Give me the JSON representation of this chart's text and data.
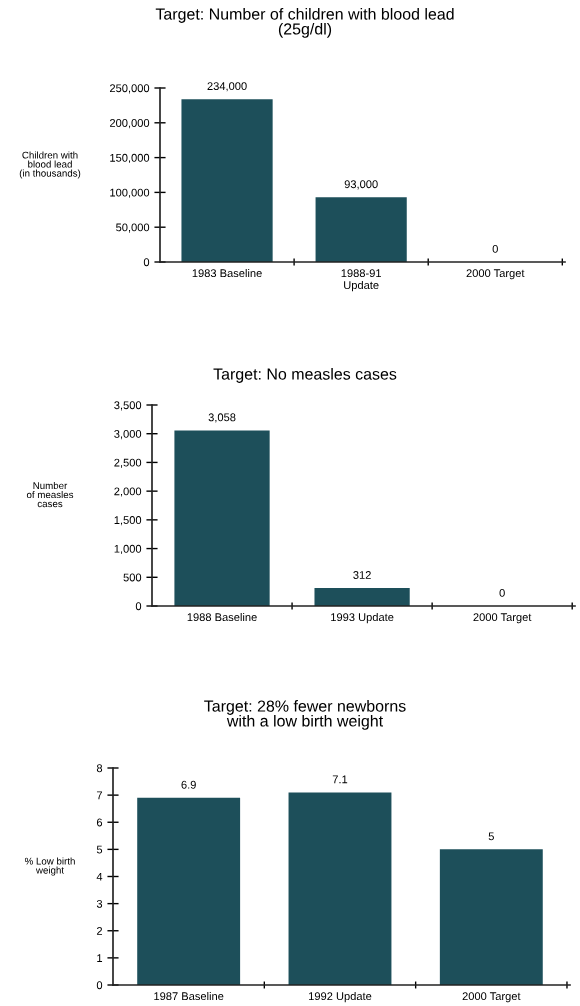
{
  "chart_data": [
    {
      "type": "bar",
      "title": "Target: Number of children with blood lead\n(25g/dl)",
      "ylabel": "Children with\nblood lead\n(in thousands)",
      "categories": [
        "1983 Baseline",
        "1988-91\nUpdate",
        "2000 Target"
      ],
      "values": [
        234000,
        93000,
        0
      ],
      "value_labels": [
        "234,000",
        "93,000",
        "0"
      ],
      "color": "#1d4f5a",
      "ylim": [
        0,
        250000
      ],
      "yticks": [
        0,
        {
          "value": 50000,
          "label": "50,000"
        },
        {
          "value": 100000,
          "label": "100,000"
        },
        {
          "value": 150000,
          "label": "150,000"
        },
        {
          "value": 200000,
          "label": "200,000"
        },
        {
          "value": 250000,
          "label": "250,000"
        }
      ],
      "grid": false
    },
    {
      "type": "bar",
      "title": "Target: No measles cases",
      "ylabel": "Number\nof measles\ncases",
      "categories": [
        "1988 Baseline",
        "1993 Update",
        "2000 Target"
      ],
      "values": [
        3058,
        312,
        0
      ],
      "value_labels": [
        "3,058",
        "312",
        "0"
      ],
      "color": "#1d4f5a",
      "ylim": [
        0,
        3500
      ],
      "yticks": [
        0,
        500,
        {
          "value": 1000,
          "label": "1,000"
        },
        {
          "value": 1500,
          "label": "1,500"
        },
        {
          "value": 2000,
          "label": "2,000"
        },
        {
          "value": 2500,
          "label": "2,500"
        },
        {
          "value": 3000,
          "label": "3,000"
        },
        {
          "value": 3500,
          "label": "3,500"
        }
      ],
      "grid": false
    },
    {
      "type": "bar",
      "title": "Target: 28% fewer newborns\nwith a low birth weight",
      "ylabel": "% Low birth\nweight",
      "categories": [
        "1987 Baseline",
        "1992 Update",
        "2000 Target"
      ],
      "values": [
        6.9,
        7.1,
        5
      ],
      "data_labels": true,
      "color": "#1d4f5a",
      "ylim": [
        0,
        8
      ],
      "yticks": [
        0,
        1,
        2,
        3,
        4,
        5,
        6,
        7,
        8
      ],
      "grid": false
    }
  ]
}
